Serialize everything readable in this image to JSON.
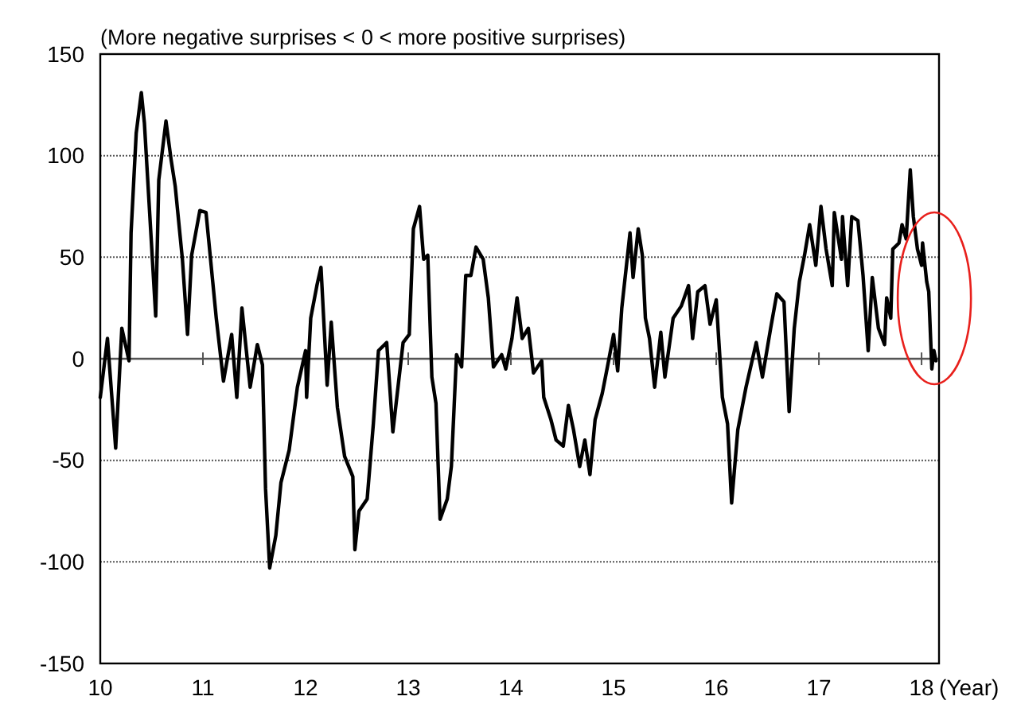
{
  "chart_data": {
    "type": "line",
    "subtitle": "(More negative surprises < 0 < more positive surprises)",
    "xlabel": "(Year)",
    "x": [
      10.0,
      10.07,
      10.15,
      10.21,
      10.28,
      10.3,
      10.35,
      10.4,
      10.43,
      10.46,
      10.54,
      10.57,
      10.64,
      10.69,
      10.73,
      10.8,
      10.85,
      10.89,
      10.97,
      11.03,
      11.13,
      11.2,
      11.28,
      11.33,
      11.38,
      11.46,
      11.53,
      11.58,
      11.61,
      11.65,
      11.71,
      11.76,
      11.84,
      11.92,
      12.0,
      12.01,
      12.05,
      12.11,
      12.15,
      12.21,
      12.25,
      12.31,
      12.38,
      12.46,
      12.48,
      12.52,
      12.6,
      12.66,
      12.71,
      12.79,
      12.85,
      12.95,
      13.01,
      13.05,
      13.11,
      13.15,
      13.19,
      13.23,
      13.27,
      13.31,
      13.38,
      13.42,
      13.47,
      13.52,
      13.56,
      13.61,
      13.66,
      13.73,
      13.78,
      13.83,
      13.91,
      13.95,
      14.01,
      14.06,
      14.11,
      14.17,
      14.22,
      14.3,
      14.32,
      14.39,
      14.44,
      14.51,
      14.56,
      14.61,
      14.67,
      14.72,
      14.77,
      14.82,
      14.89,
      14.94,
      15.0,
      15.04,
      15.08,
      15.16,
      15.19,
      15.24,
      15.28,
      15.31,
      15.35,
      15.4,
      15.46,
      15.5,
      15.58,
      15.66,
      15.73,
      15.77,
      15.82,
      15.89,
      15.94,
      16.0,
      16.06,
      16.11,
      16.15,
      16.21,
      16.29,
      16.39,
      16.45,
      16.53,
      16.59,
      16.66,
      16.71,
      16.76,
      16.81,
      16.86,
      16.91,
      16.97,
      17.02,
      17.07,
      17.13,
      17.15,
      17.22,
      17.23,
      17.28,
      17.32,
      17.38,
      17.43,
      17.48,
      17.52,
      17.58,
      17.64,
      17.66,
      17.7,
      17.72,
      17.78,
      17.81,
      17.85,
      17.89,
      17.92,
      17.96,
      18.0,
      18.01,
      18.05,
      18.07,
      18.1,
      18.12,
      18.14
    ],
    "series": [
      {
        "color": "#000000",
        "values": [
          -19,
          10,
          -44,
          15,
          -1,
          62,
          111,
          131,
          116,
          90,
          21,
          88,
          117,
          98,
          85,
          49,
          12,
          51,
          73,
          72,
          20,
          -11,
          12,
          -19,
          25,
          -14,
          7,
          -3,
          -64,
          -103,
          -87,
          -61,
          -45,
          -14,
          4,
          -19,
          20,
          36,
          45,
          -13,
          18,
          -24,
          -48,
          -58,
          -94,
          -75,
          -69,
          -32,
          4,
          8,
          -36,
          8,
          12,
          64,
          75,
          49,
          51,
          -9,
          -22,
          -79,
          -69,
          -53,
          2,
          -4,
          41,
          41,
          55,
          49,
          30,
          -4,
          2,
          -5,
          10,
          30,
          10,
          15,
          -7,
          -1,
          -19,
          -30,
          -40,
          -43,
          -23,
          -35,
          -53,
          -40,
          -57,
          -30,
          -17,
          -4,
          12,
          -6,
          25,
          62,
          40,
          64,
          51,
          20,
          10,
          -14,
          13,
          -9,
          20,
          26,
          36,
          10,
          33,
          36,
          17,
          29,
          -19,
          -32,
          -71,
          -35,
          -14,
          8,
          -9,
          15,
          32,
          28,
          -26,
          15,
          38,
          51,
          66,
          46,
          75,
          54,
          36,
          72,
          49,
          70,
          36,
          70,
          68,
          41,
          4,
          40,
          15,
          7,
          30,
          20,
          54,
          57,
          66,
          59,
          93,
          70,
          54,
          46,
          57,
          38,
          33,
          -5,
          4,
          -1
        ]
      }
    ],
    "xlim": [
      10,
      18.17
    ],
    "xticks": [
      10,
      11,
      12,
      13,
      14,
      15,
      16,
      17,
      18
    ],
    "ylim": [
      -150,
      150
    ],
    "yticks": [
      -150,
      -100,
      -50,
      0,
      50,
      100,
      150
    ],
    "grid": "y",
    "marker": "none",
    "line_style": "solid",
    "ref_lines": [
      {
        "axis": "y",
        "value": 0
      }
    ]
  }
}
